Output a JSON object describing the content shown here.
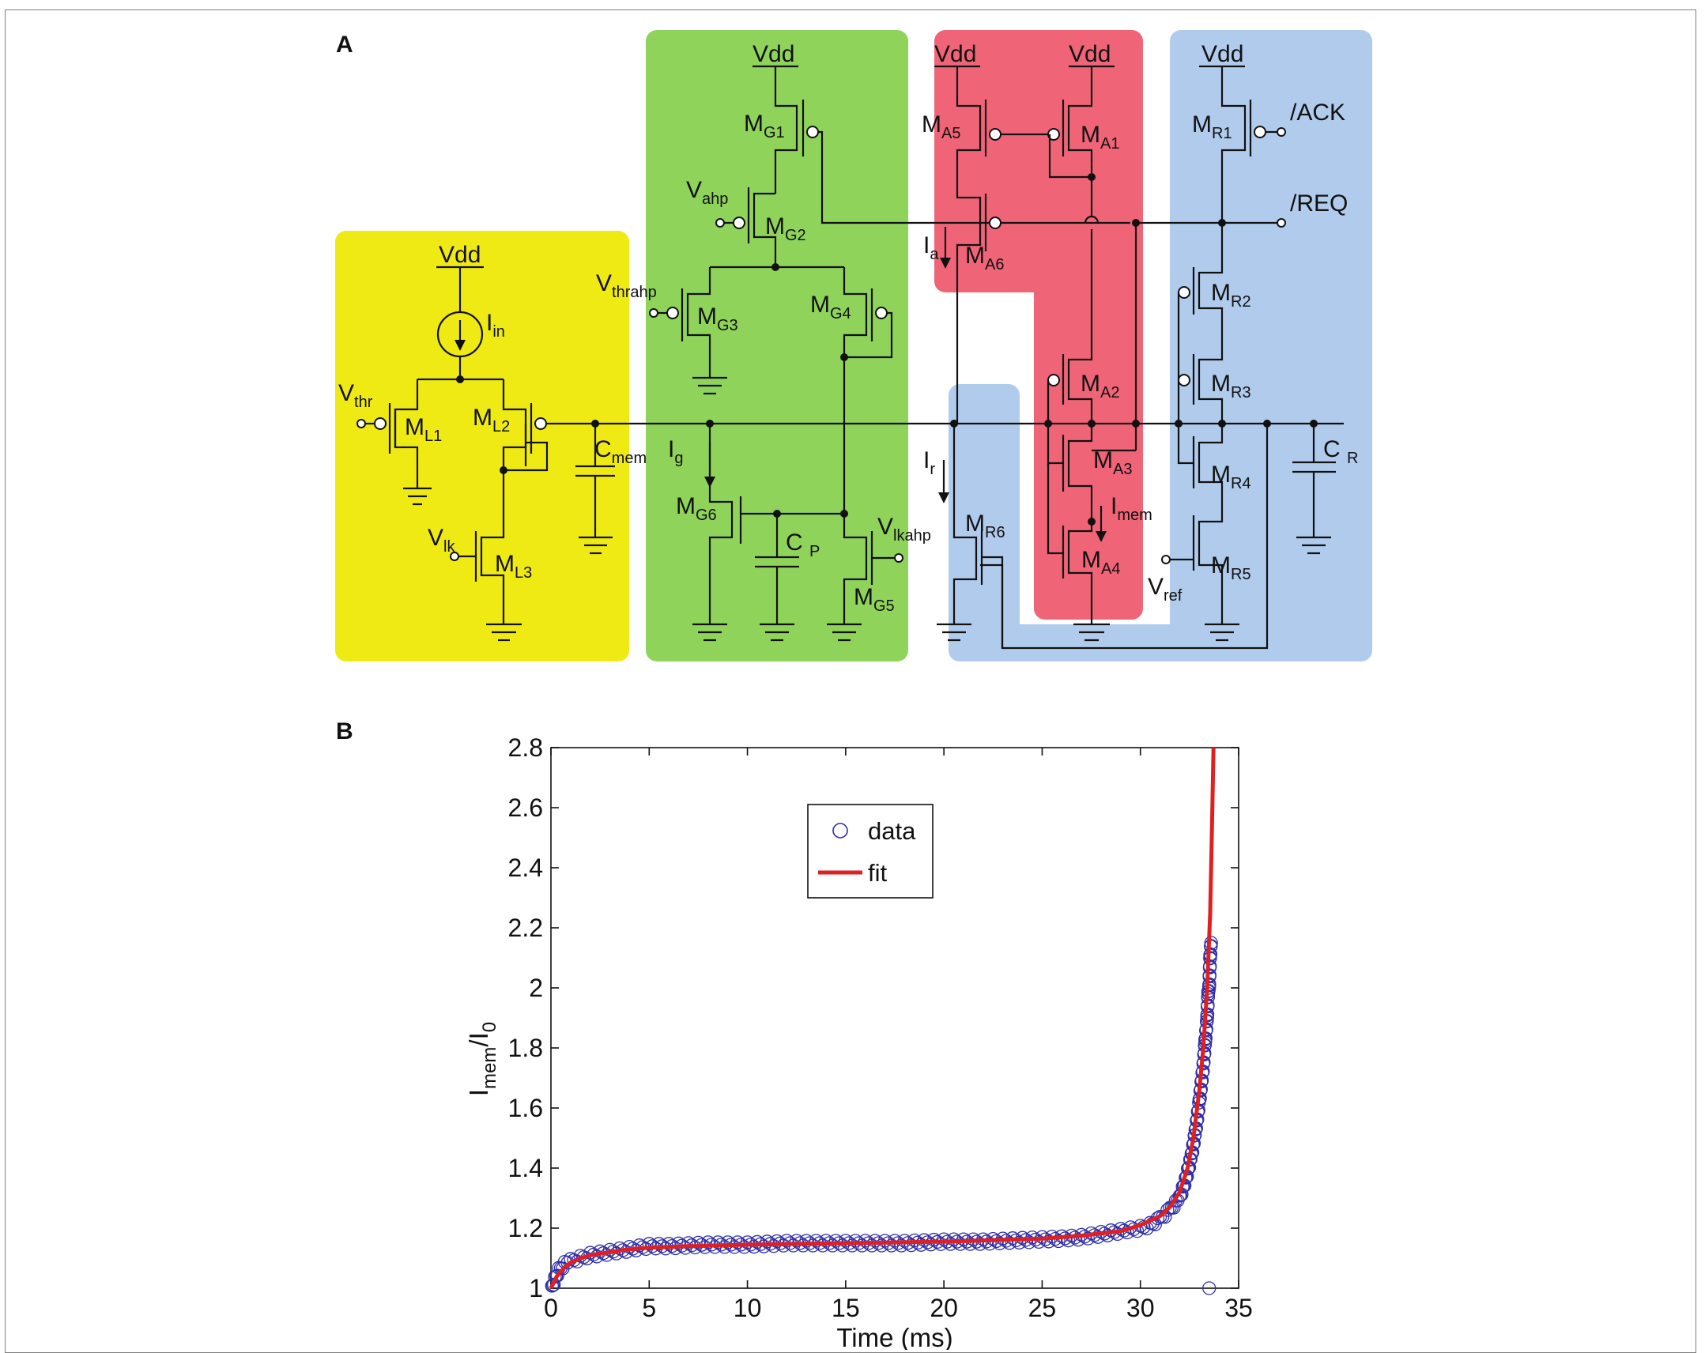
{
  "panels": {
    "a": "A",
    "b": "B"
  },
  "colors": {
    "yellow": "#f0ea14",
    "green": "#8fd35a",
    "red": "#f06478",
    "blue": "#b0cbec",
    "fit": "#e02020",
    "data": "#2e2ea8"
  },
  "circuit": {
    "vdd": "Vdd",
    "nodes": {
      "I_in": [
        "I",
        "in"
      ],
      "V_thr": [
        "V",
        "thr"
      ],
      "M_L1": [
        "M",
        "L1"
      ],
      "M_L2": [
        "M",
        "L2"
      ],
      "M_L3": [
        "M",
        "L3"
      ],
      "V_lk": [
        "V",
        "lk"
      ],
      "C_mem": [
        "C",
        "mem"
      ],
      "M_G1": [
        "M",
        "G1"
      ],
      "M_G2": [
        "M",
        "G2"
      ],
      "M_G3": [
        "M",
        "G3"
      ],
      "M_G4": [
        "M",
        "G4"
      ],
      "M_G5": [
        "M",
        "G5"
      ],
      "M_G6": [
        "M",
        "G6"
      ],
      "V_ahp": [
        "V",
        "ahp"
      ],
      "V_thrahp": [
        "V",
        "thrahp"
      ],
      "V_lkahp": [
        "V",
        "lkahp"
      ],
      "I_g": [
        "I",
        "g"
      ],
      "C_P": [
        "C ",
        "P"
      ],
      "M_A1": [
        "M",
        "A1"
      ],
      "M_A2": [
        "M",
        "A2"
      ],
      "M_A3": [
        "M",
        "A3"
      ],
      "M_A4": [
        "M",
        "A4"
      ],
      "M_A5": [
        "M",
        "A5"
      ],
      "M_A6": [
        "M",
        "A6"
      ],
      "I_a": [
        "I",
        "a"
      ],
      "I_mem": [
        "I",
        "mem"
      ],
      "M_R1": [
        "M",
        "R1"
      ],
      "M_R2": [
        "M",
        "R2"
      ],
      "M_R3": [
        "M",
        "R3"
      ],
      "M_R4": [
        "M",
        "R4"
      ],
      "M_R5": [
        "M",
        "R5"
      ],
      "M_R6": [
        "M",
        "R6"
      ],
      "I_r": [
        "I",
        "r"
      ],
      "V_ref": [
        "V",
        "ref"
      ],
      "C_R": [
        "C ",
        "R"
      ]
    },
    "ack": "/ACK",
    "req": "/REQ"
  },
  "chart_data": {
    "type": "scatter",
    "xlabel": "Time (ms)",
    "ylabel_main": "I",
    "ylabel_sub1": "mem",
    "ylabel_mid": "/I",
    "ylabel_sub2": "0",
    "xlim": [
      0,
      35
    ],
    "ylim": [
      1,
      2.8
    ],
    "xticks": [
      0,
      5,
      10,
      15,
      20,
      25,
      30,
      35
    ],
    "yticks": [
      1,
      1.2,
      1.4,
      1.6,
      1.8,
      2,
      2.2,
      2.4,
      2.6,
      2.8
    ],
    "ytick_labels": [
      "1",
      "1.2",
      "1.4",
      "1.6",
      "1.8",
      "2",
      "2.2",
      "2.4",
      "2.6",
      "2.8"
    ],
    "legend": {
      "position": "top-left",
      "entries": [
        "data",
        "fit"
      ]
    },
    "series": [
      {
        "name": "data",
        "style": "open-circles",
        "x": [
          0.05,
          0.2,
          0.4,
          0.7,
          1,
          1.5,
          2,
          3,
          4,
          5,
          6,
          8,
          10,
          12,
          14,
          16,
          18,
          20,
          22,
          24,
          26,
          27,
          28,
          29,
          30,
          30.5,
          31,
          31.5,
          32,
          32.3,
          32.6,
          32.8,
          33,
          33.1,
          33.2,
          33.3,
          33.4,
          33.45,
          33.5,
          33.55,
          33.6,
          33.5
        ],
        "y": [
          1.0,
          1.03,
          1.06,
          1.08,
          1.09,
          1.1,
          1.11,
          1.12,
          1.13,
          1.14,
          1.14,
          1.145,
          1.145,
          1.15,
          1.15,
          1.15,
          1.15,
          1.155,
          1.155,
          1.16,
          1.165,
          1.17,
          1.18,
          1.19,
          1.2,
          1.21,
          1.23,
          1.26,
          1.3,
          1.36,
          1.44,
          1.52,
          1.62,
          1.68,
          1.74,
          1.82,
          1.9,
          1.98,
          2.0,
          2.1,
          2.15,
          1.0
        ]
      },
      {
        "name": "fit",
        "style": "line",
        "x": [
          0,
          0.3,
          0.7,
          1,
          1.5,
          2,
          3,
          4,
          5,
          7,
          10,
          15,
          20,
          25,
          27,
          29,
          30,
          31,
          31.5,
          32,
          32.4,
          32.7,
          33,
          33.2,
          33.4,
          33.55,
          33.65,
          33.72
        ],
        "y": [
          1.0,
          1.04,
          1.07,
          1.085,
          1.1,
          1.11,
          1.12,
          1.13,
          1.135,
          1.14,
          1.145,
          1.15,
          1.155,
          1.165,
          1.175,
          1.19,
          1.21,
          1.24,
          1.27,
          1.32,
          1.4,
          1.5,
          1.66,
          1.8,
          2.0,
          2.25,
          2.55,
          2.8
        ]
      }
    ]
  }
}
